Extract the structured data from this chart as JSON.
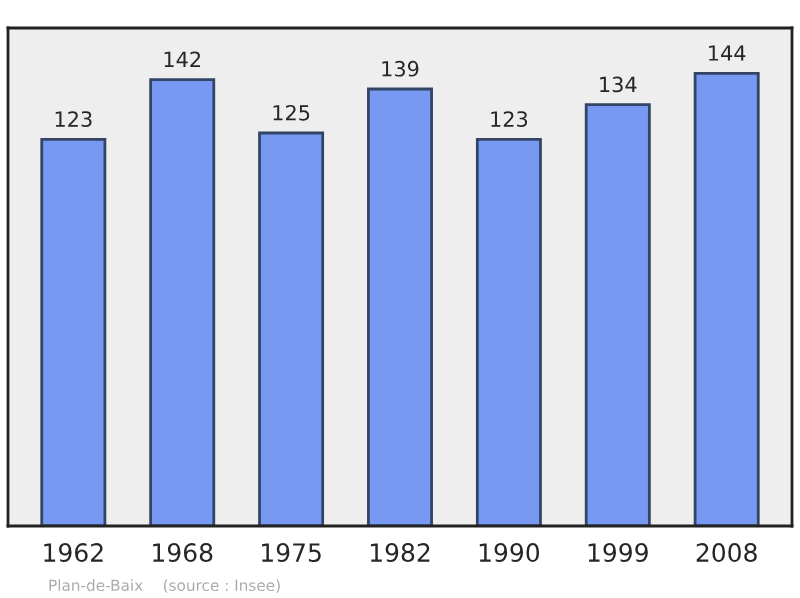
{
  "chart_data": {
    "type": "bar",
    "categories": [
      "1962",
      "1968",
      "1975",
      "1982",
      "1990",
      "1999",
      "2008"
    ],
    "values": [
      123,
      142,
      125,
      139,
      123,
      134,
      144
    ],
    "color": "#7799f2",
    "data_labels": true,
    "annotations": [
      "Plan-de-Baix    (source : Insee)"
    ]
  }
}
